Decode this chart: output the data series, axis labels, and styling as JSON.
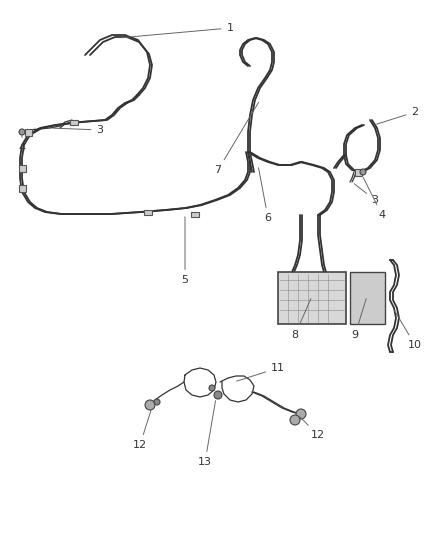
{
  "bg_color": "#ffffff",
  "line_color": "#333333",
  "label_color": "#333333",
  "lw_main": 1.3,
  "lw_thin": 0.9,
  "figsize": [
    4.38,
    5.33
  ],
  "dpi": 100
}
